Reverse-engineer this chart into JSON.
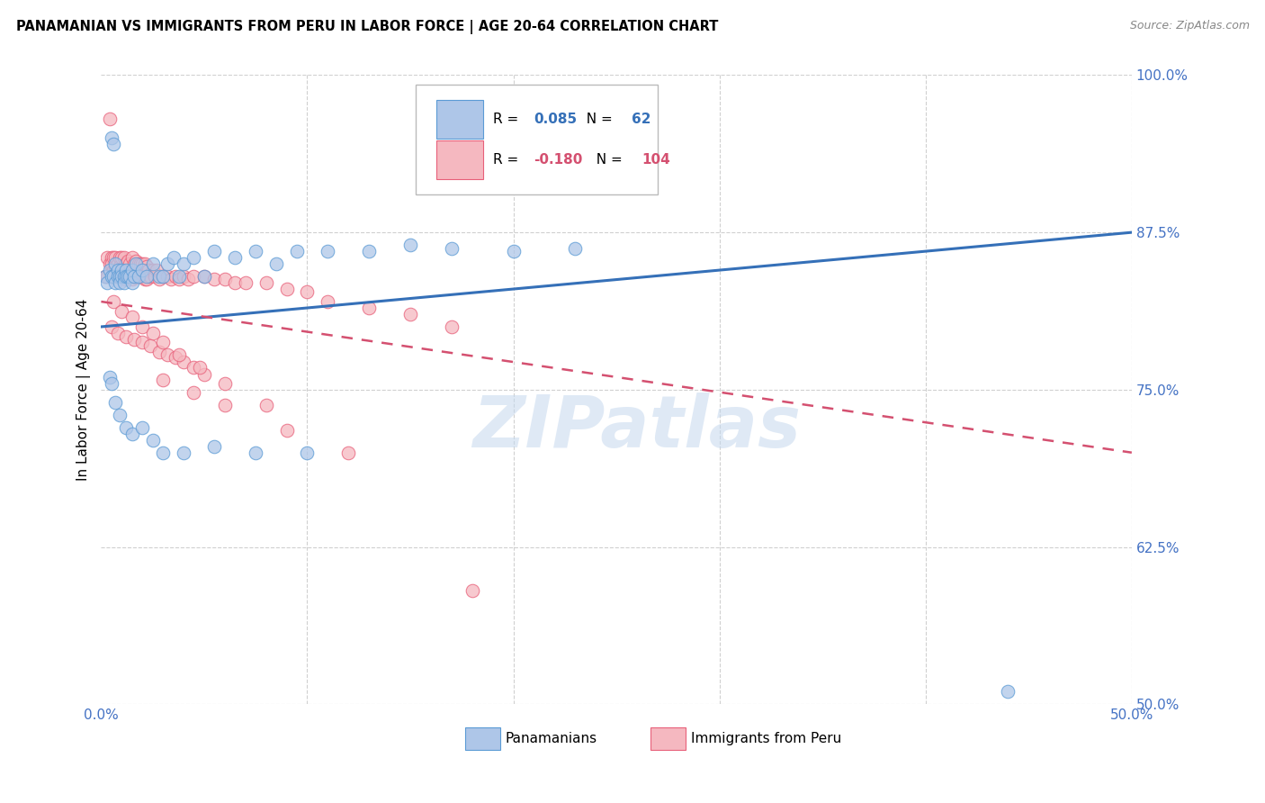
{
  "title": "PANAMANIAN VS IMMIGRANTS FROM PERU IN LABOR FORCE | AGE 20-64 CORRELATION CHART",
  "source": "Source: ZipAtlas.com",
  "ylabel": "In Labor Force | Age 20-64",
  "xlim": [
    0.0,
    0.5
  ],
  "ylim": [
    0.5,
    1.0
  ],
  "yticks": [
    0.5,
    0.625,
    0.75,
    0.875,
    1.0
  ],
  "ytick_labels": [
    "50.0%",
    "62.5%",
    "75.0%",
    "87.5%",
    "100.0%"
  ],
  "blue_R": "0.085",
  "blue_N": "62",
  "pink_R": "-0.180",
  "pink_N": "104",
  "blue_color": "#aec6e8",
  "pink_color": "#f5b8c0",
  "blue_edge_color": "#5b9bd5",
  "pink_edge_color": "#e8607a",
  "blue_line_color": "#3570b8",
  "pink_line_color": "#d45070",
  "legend_label_blue": "Panamanians",
  "legend_label_pink": "Immigrants from Peru",
  "watermark": "ZIPatlas",
  "blue_trend_x0": 0.0,
  "blue_trend_y0": 0.8,
  "blue_trend_x1": 0.5,
  "blue_trend_y1": 0.875,
  "pink_trend_x0": 0.0,
  "pink_trend_y0": 0.82,
  "pink_trend_x1": 0.5,
  "pink_trend_y1": 0.7,
  "blue_x": [
    0.002,
    0.003,
    0.004,
    0.005,
    0.005,
    0.006,
    0.006,
    0.007,
    0.007,
    0.008,
    0.008,
    0.009,
    0.009,
    0.01,
    0.01,
    0.011,
    0.011,
    0.012,
    0.012,
    0.013,
    0.014,
    0.015,
    0.015,
    0.016,
    0.017,
    0.018,
    0.02,
    0.022,
    0.025,
    0.028,
    0.03,
    0.032,
    0.035,
    0.038,
    0.04,
    0.045,
    0.05,
    0.055,
    0.065,
    0.075,
    0.085,
    0.095,
    0.11,
    0.13,
    0.15,
    0.17,
    0.2,
    0.23,
    0.004,
    0.005,
    0.007,
    0.009,
    0.012,
    0.015,
    0.02,
    0.025,
    0.03,
    0.04,
    0.055,
    0.075,
    0.1,
    0.44
  ],
  "blue_y": [
    0.84,
    0.835,
    0.845,
    0.95,
    0.84,
    0.945,
    0.84,
    0.85,
    0.835,
    0.845,
    0.84,
    0.84,
    0.835,
    0.845,
    0.84,
    0.84,
    0.835,
    0.845,
    0.84,
    0.84,
    0.84,
    0.845,
    0.835,
    0.84,
    0.85,
    0.84,
    0.845,
    0.84,
    0.85,
    0.84,
    0.84,
    0.85,
    0.855,
    0.84,
    0.85,
    0.855,
    0.84,
    0.86,
    0.855,
    0.86,
    0.85,
    0.86,
    0.86,
    0.86,
    0.865,
    0.862,
    0.86,
    0.862,
    0.76,
    0.755,
    0.74,
    0.73,
    0.72,
    0.715,
    0.72,
    0.71,
    0.7,
    0.7,
    0.705,
    0.7,
    0.7,
    0.51
  ],
  "pink_x": [
    0.002,
    0.003,
    0.003,
    0.004,
    0.004,
    0.005,
    0.005,
    0.005,
    0.006,
    0.006,
    0.006,
    0.007,
    0.007,
    0.007,
    0.008,
    0.008,
    0.008,
    0.009,
    0.009,
    0.009,
    0.01,
    0.01,
    0.01,
    0.011,
    0.011,
    0.011,
    0.012,
    0.012,
    0.012,
    0.013,
    0.013,
    0.014,
    0.014,
    0.015,
    0.015,
    0.015,
    0.016,
    0.016,
    0.017,
    0.017,
    0.018,
    0.018,
    0.019,
    0.019,
    0.02,
    0.02,
    0.021,
    0.021,
    0.022,
    0.022,
    0.023,
    0.024,
    0.025,
    0.026,
    0.027,
    0.028,
    0.03,
    0.032,
    0.034,
    0.036,
    0.038,
    0.04,
    0.042,
    0.045,
    0.05,
    0.055,
    0.06,
    0.065,
    0.07,
    0.08,
    0.09,
    0.1,
    0.11,
    0.13,
    0.15,
    0.17,
    0.005,
    0.008,
    0.012,
    0.016,
    0.02,
    0.024,
    0.028,
    0.032,
    0.036,
    0.04,
    0.045,
    0.05,
    0.006,
    0.01,
    0.015,
    0.02,
    0.025,
    0.03,
    0.038,
    0.048,
    0.06,
    0.08,
    0.03,
    0.045,
    0.06,
    0.09,
    0.12,
    0.18
  ],
  "pink_y": [
    0.84,
    0.855,
    0.84,
    0.85,
    0.965,
    0.855,
    0.85,
    0.84,
    0.855,
    0.845,
    0.84,
    0.855,
    0.848,
    0.84,
    0.85,
    0.845,
    0.84,
    0.855,
    0.848,
    0.84,
    0.855,
    0.845,
    0.84,
    0.855,
    0.845,
    0.838,
    0.85,
    0.845,
    0.838,
    0.852,
    0.842,
    0.85,
    0.84,
    0.855,
    0.845,
    0.838,
    0.85,
    0.84,
    0.852,
    0.84,
    0.85,
    0.84,
    0.85,
    0.84,
    0.85,
    0.84,
    0.85,
    0.838,
    0.848,
    0.838,
    0.845,
    0.84,
    0.845,
    0.84,
    0.845,
    0.838,
    0.84,
    0.84,
    0.838,
    0.84,
    0.838,
    0.84,
    0.838,
    0.84,
    0.84,
    0.838,
    0.838,
    0.835,
    0.835,
    0.835,
    0.83,
    0.828,
    0.82,
    0.815,
    0.81,
    0.8,
    0.8,
    0.795,
    0.792,
    0.79,
    0.788,
    0.785,
    0.78,
    0.778,
    0.776,
    0.772,
    0.768,
    0.762,
    0.82,
    0.812,
    0.808,
    0.8,
    0.795,
    0.788,
    0.778,
    0.768,
    0.755,
    0.738,
    0.758,
    0.748,
    0.738,
    0.718,
    0.7,
    0.59
  ]
}
